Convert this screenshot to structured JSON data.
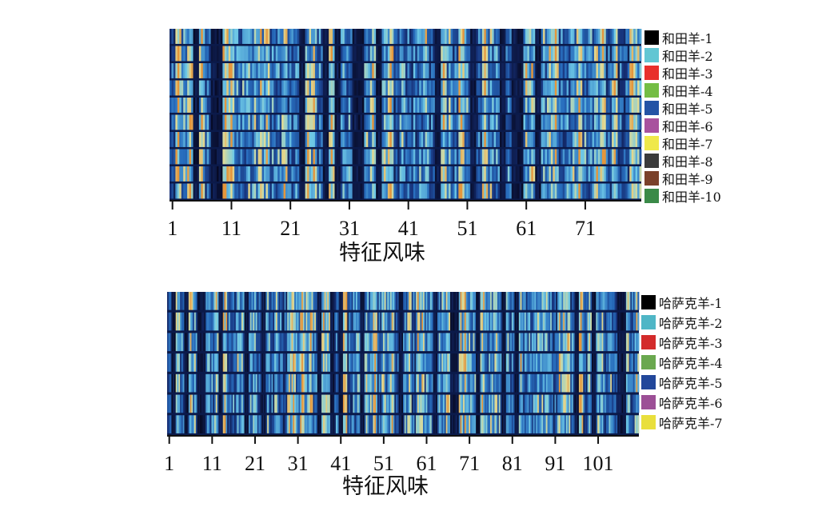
{
  "chart_data": [
    {
      "type": "heatmap",
      "xlabel": "特征风味",
      "ticks": [
        1,
        11,
        21,
        31,
        41,
        51,
        61,
        71
      ],
      "n_features": 80,
      "series": [
        {
          "name": "和田羊-1",
          "color": "#000000"
        },
        {
          "name": "和田羊-2",
          "color": "#62c6d3"
        },
        {
          "name": "和田羊-3",
          "color": "#e8302b"
        },
        {
          "name": "和田羊-4",
          "color": "#74bd44"
        },
        {
          "name": "和田羊-5",
          "color": "#2453a5"
        },
        {
          "name": "和田羊-6",
          "color": "#a8529e"
        },
        {
          "name": "和田羊-7",
          "color": "#efe84a"
        },
        {
          "name": "和田羊-8",
          "color": "#3b3b3b"
        },
        {
          "name": "和田羊-9",
          "color": "#7a412a"
        },
        {
          "name": "和田羊-10",
          "color": "#3a8a48"
        }
      ]
    },
    {
      "type": "heatmap",
      "xlabel": "特征风味",
      "ticks": [
        1,
        11,
        21,
        31,
        41,
        51,
        61,
        71,
        81,
        91,
        101
      ],
      "n_features": 110,
      "series": [
        {
          "name": "哈萨克羊-1",
          "color": "#000000"
        },
        {
          "name": "哈萨克羊-2",
          "color": "#4fb6c6"
        },
        {
          "name": "哈萨克羊-3",
          "color": "#d32b2b"
        },
        {
          "name": "哈萨克羊-4",
          "color": "#6aa84f"
        },
        {
          "name": "哈萨克羊-5",
          "color": "#22479a"
        },
        {
          "name": "哈萨克羊-6",
          "color": "#9c4f96"
        },
        {
          "name": "哈萨克羊-7",
          "color": "#e9df3c"
        }
      ]
    }
  ]
}
